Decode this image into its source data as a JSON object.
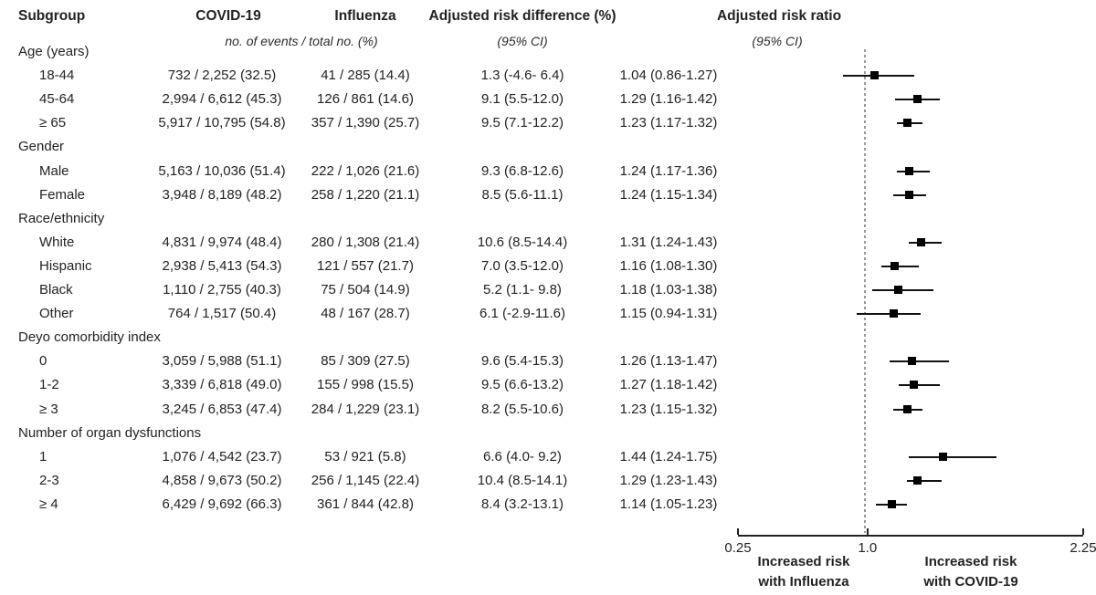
{
  "header": {
    "col_subgroup": "Subgroup",
    "col_covid": "COVID-19",
    "col_influenza": "Influenza",
    "col_risk_difference": "Adjusted risk difference (%)",
    "col_risk_ratio": "Adjusted risk ratio",
    "sub_events": "no. of events / total no. (%)",
    "sub_ci_rd": "(95% CI)",
    "sub_ci_rr": "(95% CI)"
  },
  "groups": [
    {
      "label": "Age (years)",
      "rows": [
        {
          "label": "18-44",
          "covid": "732 / 2,252 (32.5)",
          "influenza": "41 / 285 (14.4)",
          "rd": "1.3 (-4.6- 6.4)",
          "rr": "1.04 (0.86-1.27)",
          "est": 1.04,
          "lo": 0.86,
          "hi": 1.27
        },
        {
          "label": "45-64",
          "covid": "2,994 / 6,612 (45.3)",
          "influenza": "126 / 861 (14.6)",
          "rd": "9.1 (5.5-12.0)",
          "rr": "1.29 (1.16-1.42)",
          "est": 1.29,
          "lo": 1.16,
          "hi": 1.42
        },
        {
          "label": "≥ 65",
          "covid": "5,917 / 10,795 (54.8)",
          "influenza": "357 / 1,390 (25.7)",
          "rd": "9.5 (7.1-12.2)",
          "rr": "1.23 (1.17-1.32)",
          "est": 1.23,
          "lo": 1.17,
          "hi": 1.32
        }
      ]
    },
    {
      "label": "Gender",
      "rows": [
        {
          "label": "Male",
          "covid": "5,163 / 10,036 (51.4)",
          "influenza": "222 / 1,026 (21.6)",
          "rd": "9.3 (6.8-12.6)",
          "rr": "1.24 (1.17-1.36)",
          "est": 1.24,
          "lo": 1.17,
          "hi": 1.36
        },
        {
          "label": "Female",
          "covid": "3,948 / 8,189 (48.2)",
          "influenza": "258 / 1,220 (21.1)",
          "rd": "8.5 (5.6-11.1)",
          "rr": "1.24 (1.15-1.34)",
          "est": 1.24,
          "lo": 1.15,
          "hi": 1.34
        }
      ]
    },
    {
      "label": "Race/ethnicity",
      "rows": [
        {
          "label": "White",
          "covid": "4,831 / 9,974 (48.4)",
          "influenza": "280 / 1,308 (21.4)",
          "rd": "10.6 (8.5-14.4)",
          "rr": "1.31 (1.24-1.43)",
          "est": 1.31,
          "lo": 1.24,
          "hi": 1.43
        },
        {
          "label": "Hispanic",
          "covid": "2,938 / 5,413 (54.3)",
          "influenza": "121 / 557 (21.7)",
          "rd": "7.0 (3.5-12.0)",
          "rr": "1.16 (1.08-1.30)",
          "est": 1.16,
          "lo": 1.08,
          "hi": 1.3
        },
        {
          "label": "Black",
          "covid": "1,110 / 2,755 (40.3)",
          "influenza": "75 / 504 (14.9)",
          "rd": "5.2 (1.1- 9.8)",
          "rr": "1.18 (1.03-1.38)",
          "est": 1.18,
          "lo": 1.03,
          "hi": 1.38
        },
        {
          "label": "Other",
          "covid": "764 / 1,517 (50.4)",
          "influenza": "48 / 167 (28.7)",
          "rd": "6.1 (-2.9-11.6)",
          "rr": "1.15 (0.94-1.31)",
          "est": 1.15,
          "lo": 0.94,
          "hi": 1.31
        }
      ]
    },
    {
      "label": "Deyo comorbidity index",
      "rows": [
        {
          "label": "0",
          "covid": "3,059 / 5,988 (51.1)",
          "influenza": "85 / 309 (27.5)",
          "rd": "9.6 (5.4-15.3)",
          "rr": "1.26 (1.13-1.47)",
          "est": 1.26,
          "lo": 1.13,
          "hi": 1.47
        },
        {
          "label": "1-2",
          "covid": "3,339 / 6,818 (49.0)",
          "influenza": "155 / 998 (15.5)",
          "rd": "9.5 (6.6-13.2)",
          "rr": "1.27 (1.18-1.42)",
          "est": 1.27,
          "lo": 1.18,
          "hi": 1.42
        },
        {
          "label": "≥ 3",
          "covid": "3,245 / 6,853 (47.4)",
          "influenza": "284 / 1,229 (23.1)",
          "rd": "8.2 (5.5-10.6)",
          "rr": "1.23 (1.15-1.32)",
          "est": 1.23,
          "lo": 1.15,
          "hi": 1.32
        }
      ]
    },
    {
      "label": "Number of organ dysfunctions",
      "rows": [
        {
          "label": "1",
          "covid": "1,076 / 4,542 (23.7)",
          "influenza": "53 / 921 (5.8)",
          "rd": "6.6 (4.0- 9.2)",
          "rr": "1.44 (1.24-1.75)",
          "est": 1.44,
          "lo": 1.24,
          "hi": 1.75
        },
        {
          "label": "2-3",
          "covid": "4,858 / 9,673 (50.2)",
          "influenza": "256 / 1,145 (22.4)",
          "rd": "10.4 (8.5-14.1)",
          "rr": "1.29 (1.23-1.43)",
          "est": 1.29,
          "lo": 1.23,
          "hi": 1.43
        },
        {
          "label": "≥ 4",
          "covid": "6,429 / 9,692 (66.3)",
          "influenza": "361 / 844 (42.8)",
          "rd": "8.4 (3.2-13.1)",
          "rr": "1.14 (1.05-1.23)",
          "est": 1.14,
          "lo": 1.05,
          "hi": 1.23
        }
      ]
    }
  ],
  "axis": {
    "min": 0.25,
    "max": 2.25,
    "reference_value": 1.0,
    "ticks": [
      {
        "value": 0.25,
        "label": "0.25"
      },
      {
        "value": 1.0,
        "label": "1.0"
      },
      {
        "value": 2.25,
        "label": "2.25"
      }
    ]
  },
  "footnotes": {
    "left_line1": "Increased risk",
    "left_line2": "with Influenza",
    "right_line1": "Increased risk",
    "right_line2": "with COVID-19"
  },
  "colors": {
    "text": "#222222",
    "marker": "#000000",
    "ci_line": "#111111",
    "reference_line": "#999999",
    "axis": "#222222"
  },
  "chart_data": {
    "type": "scatter",
    "variant": "forest_plot",
    "title": "Adjusted risk ratio (95% CI): COVID-19 vs Influenza by subgroup",
    "x_axis": {
      "scale": "linear",
      "min": 0.25,
      "max": 2.25,
      "ticks": [
        0.25,
        1.0,
        2.25
      ],
      "reference_line": 1.0
    },
    "legend_position": "none",
    "grid": false,
    "xlabel_left_of_1": "Increased risk with Influenza",
    "xlabel_right_of_1": "Increased risk with COVID-19",
    "series": [
      {
        "name": "Adjusted risk ratio",
        "points": [
          {
            "group": "Age (years)",
            "subgroup": "18-44",
            "estimate": 1.04,
            "ci_lower": 0.86,
            "ci_upper": 1.27
          },
          {
            "group": "Age (years)",
            "subgroup": "45-64",
            "estimate": 1.29,
            "ci_lower": 1.16,
            "ci_upper": 1.42
          },
          {
            "group": "Age (years)",
            "subgroup": "≥ 65",
            "estimate": 1.23,
            "ci_lower": 1.17,
            "ci_upper": 1.32
          },
          {
            "group": "Gender",
            "subgroup": "Male",
            "estimate": 1.24,
            "ci_lower": 1.17,
            "ci_upper": 1.36
          },
          {
            "group": "Gender",
            "subgroup": "Female",
            "estimate": 1.24,
            "ci_lower": 1.15,
            "ci_upper": 1.34
          },
          {
            "group": "Race/ethnicity",
            "subgroup": "White",
            "estimate": 1.31,
            "ci_lower": 1.24,
            "ci_upper": 1.43
          },
          {
            "group": "Race/ethnicity",
            "subgroup": "Hispanic",
            "estimate": 1.16,
            "ci_lower": 1.08,
            "ci_upper": 1.3
          },
          {
            "group": "Race/ethnicity",
            "subgroup": "Black",
            "estimate": 1.18,
            "ci_lower": 1.03,
            "ci_upper": 1.38
          },
          {
            "group": "Race/ethnicity",
            "subgroup": "Other",
            "estimate": 1.15,
            "ci_lower": 0.94,
            "ci_upper": 1.31
          },
          {
            "group": "Deyo comorbidity index",
            "subgroup": "0",
            "estimate": 1.26,
            "ci_lower": 1.13,
            "ci_upper": 1.47
          },
          {
            "group": "Deyo comorbidity index",
            "subgroup": "1-2",
            "estimate": 1.27,
            "ci_lower": 1.18,
            "ci_upper": 1.42
          },
          {
            "group": "Deyo comorbidity index",
            "subgroup": "≥ 3",
            "estimate": 1.23,
            "ci_lower": 1.15,
            "ci_upper": 1.32
          },
          {
            "group": "Number of organ dysfunctions",
            "subgroup": "1",
            "estimate": 1.44,
            "ci_lower": 1.24,
            "ci_upper": 1.75
          },
          {
            "group": "Number of organ dysfunctions",
            "subgroup": "2-3",
            "estimate": 1.29,
            "ci_lower": 1.23,
            "ci_upper": 1.43
          },
          {
            "group": "Number of organ dysfunctions",
            "subgroup": "≥ 4",
            "estimate": 1.14,
            "ci_lower": 1.05,
            "ci_upper": 1.23
          }
        ]
      }
    ]
  }
}
